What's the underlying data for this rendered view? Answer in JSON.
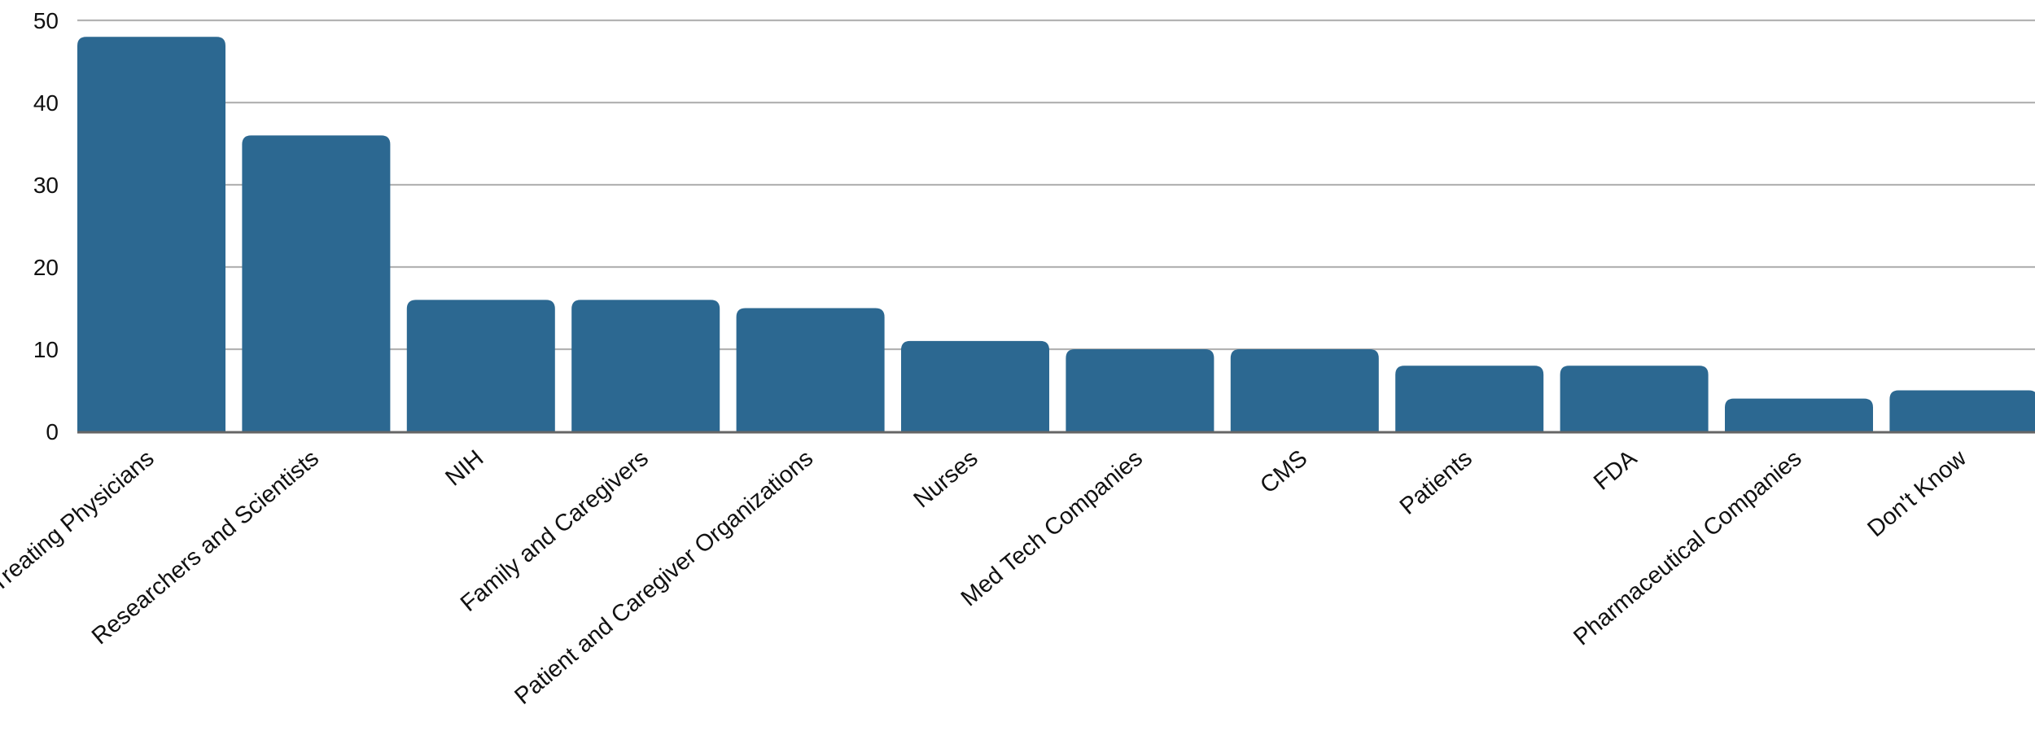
{
  "chart_data": {
    "type": "bar",
    "categories": [
      "Treating Physicians",
      "Researchers and Scientists",
      "NIH",
      "Family and Caregivers",
      "Patient and Caregiver Organizations",
      "Nurses",
      "Med Tech Companies",
      "CMS",
      "Patients",
      "FDA",
      "Pharmaceutical Companies",
      "Don't Know"
    ],
    "values": [
      48,
      36,
      16,
      16,
      15,
      11,
      10,
      10,
      8,
      8,
      4,
      5
    ],
    "ylim": [
      0,
      50
    ],
    "yticks": [
      "0",
      "10",
      "20",
      "30",
      "40",
      "50"
    ],
    "grid": true,
    "legend": "none",
    "bar_color": "#2c6891",
    "grid_color": "#b3b3b3",
    "axis_color": "#666666"
  }
}
